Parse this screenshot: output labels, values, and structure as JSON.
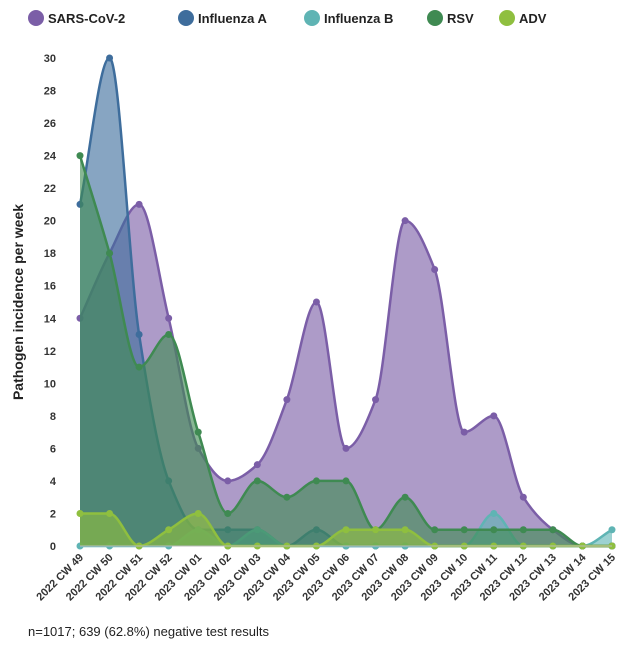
{
  "chart_data": {
    "type": "area",
    "ylabel": "Pathogen incidence per week",
    "ylim": [
      0,
      30
    ],
    "yticks": [
      0,
      2,
      4,
      6,
      8,
      10,
      12,
      14,
      16,
      18,
      20,
      22,
      24,
      26,
      28,
      30
    ],
    "categories": [
      "2022 CW 49",
      "2022 CW 50",
      "2022 CW 51",
      "2022 CW 52",
      "2023 CW 01",
      "2023 CW 02",
      "2023 CW 03",
      "2023 CW 04",
      "2023 CW 05",
      "2023 CW 06",
      "2023 CW 07",
      "2023 CW 08",
      "2023 CW 09",
      "2023 CW 10",
      "2023 CW 11",
      "2023 CW 12",
      "2023 CW 13",
      "2023 CW 14",
      "2023 CW 15"
    ],
    "legend_position": "top",
    "grid": false,
    "series": [
      {
        "name": "SARS-CoV-2",
        "color": "#7b5ea7",
        "values": [
          14,
          18,
          21,
          14,
          6,
          4,
          5,
          9,
          15,
          6,
          9,
          20,
          17,
          7,
          8,
          3,
          1,
          0,
          0
        ]
      },
      {
        "name": "Influenza A",
        "color": "#3e6d9c",
        "values": [
          21,
          30,
          13,
          4,
          1,
          1,
          1,
          0,
          1,
          0,
          0,
          0,
          0,
          0,
          0,
          0,
          0,
          0,
          0
        ]
      },
      {
        "name": "Influenza B",
        "color": "#5fb4b4",
        "values": [
          0,
          0,
          0,
          0,
          1,
          0,
          1,
          0,
          0,
          0,
          0,
          0,
          0,
          0,
          2,
          0,
          0,
          0,
          1
        ]
      },
      {
        "name": "RSV",
        "color": "#3f8a52",
        "values": [
          24,
          18,
          11,
          13,
          7,
          2,
          4,
          3,
          4,
          4,
          1,
          3,
          1,
          1,
          1,
          1,
          1,
          0,
          0
        ]
      },
      {
        "name": "ADV",
        "color": "#8fbf3f",
        "values": [
          2,
          2,
          0,
          1,
          2,
          0,
          0,
          0,
          0,
          1,
          1,
          1,
          0,
          0,
          0,
          0,
          0,
          0,
          0
        ]
      }
    ],
    "footnote": "n=1017; 639 (62.8%) negative test results"
  }
}
